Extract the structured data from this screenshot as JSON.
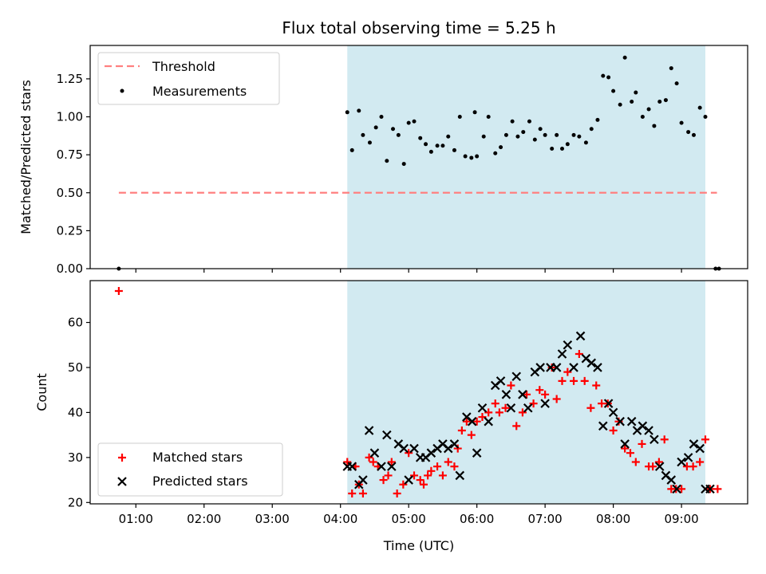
{
  "chart_data": [
    {
      "type": "scatter",
      "title": "Flux total observing time = 5.25 h",
      "xlabel": "",
      "ylabel": "Matched/Predicted stars",
      "xlim": [
        0.33,
        9.97
      ],
      "ylim": [
        0,
        1.47
      ],
      "y_ticks": [
        0.0,
        0.25,
        0.5,
        0.75,
        1.0,
        1.25
      ],
      "y_tick_labels": [
        "0.00",
        "0.25",
        "0.50",
        "0.75",
        "1.00",
        "1.25"
      ],
      "x_ticks": [
        1,
        2,
        3,
        4,
        5,
        6,
        7,
        8,
        9
      ],
      "shaded_span": {
        "x0": 4.1,
        "x1": 9.35,
        "color": "#add8e6"
      },
      "threshold": {
        "name": "Threshold",
        "y": 0.5,
        "x0": 0.75,
        "x1": 9.52,
        "color": "#ff8080"
      },
      "legend": {
        "location": "upper left",
        "entries": [
          "Threshold",
          "Measurements"
        ]
      },
      "series": [
        {
          "name": "Measurements",
          "color": "#000000",
          "x": [
            0.75,
            4.1,
            4.17,
            4.27,
            4.33,
            4.43,
            4.52,
            4.6,
            4.68,
            4.77,
            4.85,
            4.93,
            5.0,
            5.08,
            5.17,
            5.25,
            5.33,
            5.42,
            5.5,
            5.58,
            5.67,
            5.75,
            5.83,
            5.92,
            5.97,
            6.0,
            6.1,
            6.17,
            6.27,
            6.35,
            6.43,
            6.52,
            6.6,
            6.68,
            6.77,
            6.85,
            6.93,
            7.0,
            7.1,
            7.17,
            7.25,
            7.33,
            7.42,
            7.5,
            7.6,
            7.68,
            7.77,
            7.85,
            7.93,
            8.0,
            8.1,
            8.17,
            8.27,
            8.33,
            8.43,
            8.52,
            8.6,
            8.68,
            8.77,
            8.85,
            8.93,
            9.0,
            9.1,
            9.18,
            9.27,
            9.35,
            9.5,
            9.55
          ],
          "y": [
            0.0,
            1.03,
            0.78,
            1.04,
            0.88,
            0.83,
            0.93,
            1.0,
            0.71,
            0.92,
            0.88,
            0.69,
            0.96,
            0.97,
            0.86,
            0.82,
            0.77,
            0.81,
            0.81,
            0.87,
            0.78,
            1.0,
            0.74,
            0.73,
            1.03,
            0.74,
            0.87,
            1.0,
            0.76,
            0.8,
            0.88,
            0.97,
            0.87,
            0.9,
            0.97,
            0.85,
            0.92,
            0.88,
            0.79,
            0.88,
            0.79,
            0.82,
            0.88,
            0.87,
            0.83,
            0.92,
            0.98,
            1.27,
            1.26,
            1.17,
            1.08,
            1.39,
            1.1,
            1.16,
            1.0,
            1.05,
            0.94,
            1.1,
            1.11,
            1.32,
            1.22,
            0.96,
            0.9,
            0.88,
            1.06,
            1.0,
            0.0,
            0.0
          ]
        }
      ]
    },
    {
      "type": "scatter",
      "title": "",
      "xlabel": "Time (UTC)",
      "ylabel": "Count",
      "xlim": [
        0.33,
        9.97
      ],
      "ylim": [
        19.7,
        69.3
      ],
      "y_ticks": [
        20,
        30,
        40,
        50,
        60
      ],
      "y_tick_labels": [
        "20",
        "30",
        "40",
        "50",
        "60"
      ],
      "x_ticks": [
        1,
        2,
        3,
        4,
        5,
        6,
        7,
        8,
        9
      ],
      "x_tick_labels": [
        "01:00",
        "02:00",
        "03:00",
        "04:00",
        "05:00",
        "06:00",
        "07:00",
        "08:00",
        "09:00"
      ],
      "shaded_span": {
        "x0": 4.1,
        "x1": 9.35,
        "color": "#add8e6"
      },
      "legend": {
        "location": "lower left",
        "entries": [
          "Matched stars",
          "Predicted stars"
        ]
      },
      "series": [
        {
          "name": "Matched stars",
          "marker": "plus",
          "color": "#ff0000",
          "x": [
            0.75,
            4.1,
            4.17,
            4.22,
            4.27,
            4.33,
            4.42,
            4.48,
            4.55,
            4.63,
            4.7,
            4.75,
            4.83,
            4.92,
            5.0,
            5.08,
            5.17,
            5.22,
            5.28,
            5.33,
            5.42,
            5.5,
            5.58,
            5.67,
            5.72,
            5.78,
            5.85,
            5.92,
            6.0,
            6.08,
            6.17,
            6.27,
            6.33,
            6.42,
            6.5,
            6.58,
            6.67,
            6.73,
            6.83,
            6.92,
            7.0,
            7.1,
            7.17,
            7.25,
            7.33,
            7.42,
            7.5,
            7.58,
            7.67,
            7.75,
            7.83,
            7.92,
            8.0,
            8.08,
            8.17,
            8.25,
            8.33,
            8.42,
            8.52,
            8.58,
            8.67,
            8.75,
            8.85,
            8.92,
            9.0,
            9.08,
            9.17,
            9.27,
            9.35,
            9.42,
            9.53
          ],
          "y": [
            67,
            29,
            22,
            28,
            24,
            22,
            30,
            29,
            28,
            25,
            26,
            29,
            22,
            24,
            31,
            26,
            25,
            24,
            26,
            27,
            28,
            26,
            29,
            28,
            32,
            36,
            38,
            35,
            38,
            39,
            40,
            42,
            40,
            41,
            46,
            37,
            40,
            44,
            42,
            45,
            44,
            50,
            43,
            47,
            49,
            47,
            53,
            47,
            41,
            46,
            42,
            42,
            36,
            38,
            32,
            31,
            29,
            33,
            28,
            28,
            29,
            34,
            23,
            23,
            23,
            28,
            28,
            29,
            34,
            23,
            23
          ]
        },
        {
          "name": "Predicted stars",
          "marker": "x",
          "color": "#000000",
          "x": [
            4.1,
            4.17,
            4.27,
            4.33,
            4.42,
            4.5,
            4.6,
            4.68,
            4.75,
            4.85,
            4.93,
            5.0,
            5.08,
            5.17,
            5.25,
            5.33,
            5.42,
            5.5,
            5.58,
            5.67,
            5.75,
            5.85,
            5.93,
            6.0,
            6.08,
            6.17,
            6.27,
            6.35,
            6.43,
            6.5,
            6.58,
            6.67,
            6.75,
            6.85,
            6.93,
            7.0,
            7.08,
            7.17,
            7.25,
            7.33,
            7.42,
            7.52,
            7.6,
            7.68,
            7.77,
            7.85,
            7.93,
            8.0,
            8.1,
            8.17,
            8.27,
            8.35,
            8.43,
            8.52,
            8.6,
            8.68,
            8.77,
            8.85,
            8.93,
            9.0,
            9.1,
            9.18,
            9.27,
            9.35,
            9.42
          ],
          "y": [
            28,
            28,
            24,
            25,
            36,
            31,
            28,
            35,
            28,
            33,
            32,
            25,
            32,
            30,
            30,
            31,
            32,
            33,
            32,
            33,
            26,
            39,
            38,
            31,
            41,
            38,
            46,
            47,
            44,
            41,
            48,
            44,
            41,
            49,
            50,
            42,
            50,
            50,
            53,
            55,
            50,
            57,
            52,
            51,
            50,
            37,
            42,
            40,
            38,
            33,
            38,
            36,
            37,
            36,
            34,
            28,
            26,
            25,
            23,
            29,
            30,
            33,
            32,
            23,
            23
          ]
        }
      ]
    }
  ]
}
